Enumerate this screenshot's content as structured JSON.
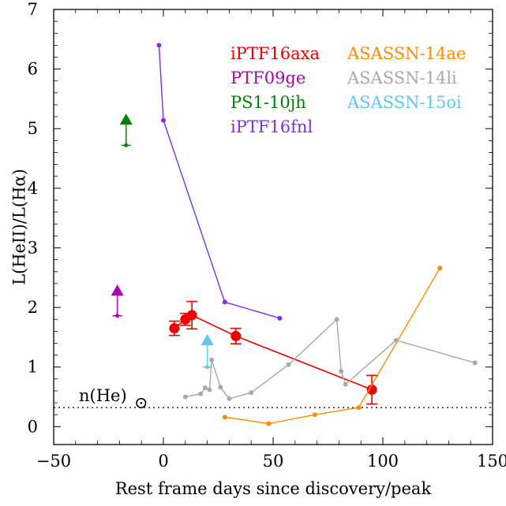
{
  "chart_data": {
    "type": "scatter",
    "xlabel": "Rest frame days since discovery/peak",
    "ylabel": "L(HeII)/L(Hα)",
    "xlim": [
      -50,
      150
    ],
    "ylim": [
      -0.3,
      7
    ],
    "xticks": [
      -50,
      0,
      50,
      100,
      150
    ],
    "yticks": [
      0,
      1,
      2,
      3,
      4,
      5,
      6,
      7
    ],
    "xtick_labels": [
      "−50",
      "0",
      "50",
      "100",
      "150"
    ],
    "ytick_labels": [
      "0",
      "1",
      "2",
      "3",
      "4",
      "5",
      "6",
      "7"
    ],
    "grid": false,
    "legend_position": "top-right",
    "reference_line": {
      "y": 0.32,
      "label": "n(He)",
      "symbol": "⊙",
      "style": "dotted"
    },
    "series": [
      {
        "name": "iPTF16axa",
        "color": "#ee0000",
        "marker": "large-circle",
        "connected": true,
        "points": [
          {
            "x": 5,
            "y": 1.65,
            "err": 0.12
          },
          {
            "x": 10,
            "y": 1.8,
            "err": 0.1
          },
          {
            "x": 13,
            "y": 1.87,
            "err": 0.23
          },
          {
            "x": 33,
            "y": 1.52,
            "err": 0.13
          },
          {
            "x": 95,
            "y": 0.62,
            "err": 0.24
          }
        ]
      },
      {
        "name": "PTF09ge",
        "color": "#b000b0",
        "marker": "lower-limit",
        "connected": false,
        "points": [
          {
            "x": -21,
            "y": 1.86,
            "limit_to": 2.25
          }
        ]
      },
      {
        "name": "PS1-10jh",
        "color": "#008000",
        "marker": "lower-limit",
        "connected": false,
        "points": [
          {
            "x": -17,
            "y": 4.72,
            "limit_to": 5.12
          }
        ]
      },
      {
        "name": "iPTF16fnl",
        "color": "#7f2fe6",
        "marker": "small-circle",
        "connected": true,
        "points": [
          {
            "x": -2,
            "y": 6.4
          },
          {
            "x": 0,
            "y": 5.14
          },
          {
            "x": 28,
            "y": 2.09
          },
          {
            "x": 53,
            "y": 1.82
          }
        ]
      },
      {
        "name": "ASASSN-14ae",
        "color": "#ff8c00",
        "marker": "small-circle",
        "connected": true,
        "points": [
          {
            "x": 28,
            "y": 0.16
          },
          {
            "x": 48,
            "y": 0.05
          },
          {
            "x": 69,
            "y": 0.2
          },
          {
            "x": 89,
            "y": 0.32
          },
          {
            "x": 126,
            "y": 2.66
          }
        ]
      },
      {
        "name": "ASASSN-14li",
        "color": "#a9a9a9",
        "marker": "small-circle",
        "connected": true,
        "points": [
          {
            "x": 10,
            "y": 0.5
          },
          {
            "x": 17,
            "y": 0.55
          },
          {
            "x": 19,
            "y": 0.65
          },
          {
            "x": 21,
            "y": 0.62
          },
          {
            "x": 22,
            "y": 1.12
          },
          {
            "x": 26,
            "y": 0.66
          },
          {
            "x": 30,
            "y": 0.47
          },
          {
            "x": 40,
            "y": 0.57
          },
          {
            "x": 57,
            "y": 1.04
          },
          {
            "x": 79,
            "y": 1.8
          },
          {
            "x": 81,
            "y": 0.93
          },
          {
            "x": 83,
            "y": 0.71
          },
          {
            "x": 106,
            "y": 1.45
          },
          {
            "x": 142,
            "y": 1.07
          }
        ]
      },
      {
        "name": "ASASSN-15oi",
        "color": "#5bc8f5",
        "marker": "lower-limit",
        "connected": false,
        "points": [
          {
            "x": 20,
            "y": 1.0,
            "limit_to": 1.42
          }
        ]
      }
    ],
    "legend_columns": [
      [
        "iPTF16axa",
        "PTF09ge",
        "PS1-10jh",
        "iPTF16fnl"
      ],
      [
        "ASASSN-14ae",
        "ASASSN-14li",
        "ASASSN-15oi"
      ]
    ]
  }
}
